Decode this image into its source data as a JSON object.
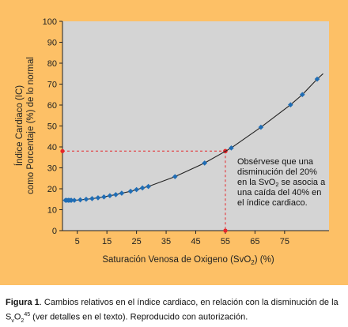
{
  "chart_data": {
    "type": "scatter",
    "x": [
      1,
      1.5,
      2,
      2.5,
      3,
      4,
      6,
      8,
      10,
      12,
      14,
      16,
      18,
      20,
      23,
      25,
      27,
      29,
      38,
      48,
      57,
      67,
      77,
      81,
      86
    ],
    "y": [
      14.5,
      14.5,
      14.5,
      14.5,
      14.5,
      14.5,
      14.7,
      15,
      15.3,
      15.7,
      16.1,
      16.7,
      17.2,
      17.9,
      18.8,
      19.6,
      20.4,
      21.1,
      25.8,
      32.3,
      39.5,
      49.4,
      60.1,
      65,
      72.4
    ],
    "xticks": [
      5,
      15,
      25,
      35,
      45,
      55,
      65,
      75
    ],
    "yticks": [
      0,
      10,
      20,
      30,
      40,
      50,
      60,
      70,
      80,
      90,
      100
    ],
    "xlim": [
      0,
      90
    ],
    "ylim": [
      0,
      100
    ],
    "xlabel_main": "Saturación Venosa de Oxigeno (SvO",
    "xlabel_sub": "2",
    "xlabel_end": ") (%)",
    "ylabel_line1": "Índice Cardiaco (IC)",
    "ylabel_line2": "como Porcentaje (%) de lo normal",
    "reference": {
      "x": 55,
      "y": 38
    },
    "annotation": {
      "line1": "Obsérvese que una",
      "line2": "disminución del 20%",
      "line3_a": "en la SvO",
      "line3_sub": "2",
      "line3_b": " se asocia a",
      "line4": "una caída del 40% en",
      "line5": "el índice cardiaco."
    },
    "colors": {
      "panel": "#fdc066",
      "plot_bg": "#d4d4d4",
      "points": "#1f6db5",
      "curve": "#222222",
      "reference": "#e5262a"
    },
    "grid": false
  },
  "caption": {
    "label": "Figura 1",
    "text_a": ". Cambios relativos en el índice cardiaco, en relación con la disminución de la S",
    "sub_v": "v",
    "mid_o": "O",
    "sub_2": "2",
    "sup_45": "45",
    "text_b": " (ver detalles en el texto). Reproducido con autorización."
  }
}
